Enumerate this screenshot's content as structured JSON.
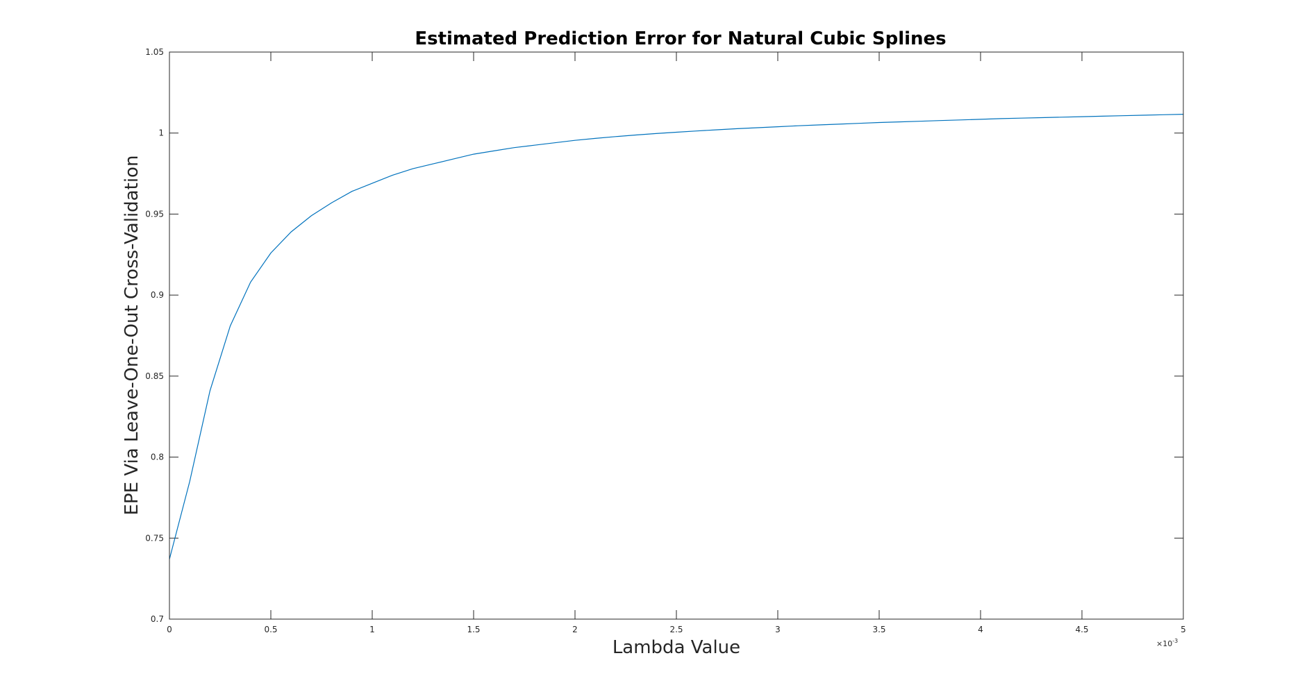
{
  "chart_data": {
    "type": "line",
    "title": "Estimated Prediction Error for Natural Cubic Splines",
    "xlabel": "Lambda Value",
    "ylabel": "EPE Via Leave-One-Out Cross-Validation",
    "xlim": [
      0,
      0.005
    ],
    "ylim": [
      0.7,
      1.05
    ],
    "x_exponent_label": "×10",
    "x_exponent_power": "-3",
    "x_ticks": [
      0,
      0.0005,
      0.001,
      0.0015,
      0.002,
      0.0025,
      0.003,
      0.0035,
      0.004,
      0.0045,
      0.005
    ],
    "x_tick_labels": [
      "0",
      "0.5",
      "1",
      "1.5",
      "2",
      "2.5",
      "3",
      "3.5",
      "4",
      "4.5",
      "5"
    ],
    "y_ticks": [
      0.7,
      0.75,
      0.8,
      0.85,
      0.9,
      0.95,
      1,
      1.05
    ],
    "y_tick_labels": [
      "0.7",
      "0.75",
      "0.8",
      "0.85",
      "0.9",
      "0.95",
      "1",
      "1.05"
    ],
    "grid": false,
    "line_color": "#0072BD",
    "series": [
      {
        "x": [
          0,
          0.0001,
          0.0002,
          0.0003,
          0.0004,
          0.0005,
          0.0006,
          0.0007,
          0.0008,
          0.0009,
          0.001,
          0.0011,
          0.0012,
          0.0013,
          0.0014,
          0.0015,
          0.0016,
          0.0017,
          0.0018,
          0.0019,
          0.002,
          0.0021,
          0.0022,
          0.0023,
          0.0024,
          0.0025,
          0.0026,
          0.0027,
          0.0028,
          0.0029,
          0.003,
          0.0031,
          0.0032,
          0.0033,
          0.0034,
          0.0035,
          0.0036,
          0.0037,
          0.0038,
          0.0039,
          0.004,
          0.0041,
          0.0042,
          0.0043,
          0.0044,
          0.0045,
          0.0046,
          0.0047,
          0.0048,
          0.0049,
          0.005
        ],
        "y": [
          0.737,
          0.785,
          0.841,
          0.881,
          0.908,
          0.926,
          0.939,
          0.949,
          0.957,
          0.964,
          0.969,
          0.974,
          0.978,
          0.981,
          0.984,
          0.987,
          0.989,
          0.991,
          0.9925,
          0.994,
          0.9955,
          0.9967,
          0.9978,
          0.9988,
          0.9997,
          1.0005,
          1.0013,
          1.002,
          1.0027,
          1.0033,
          1.0039,
          1.0045,
          1.005,
          1.0055,
          1.006,
          1.0065,
          1.0069,
          1.0073,
          1.0077,
          1.0081,
          1.0085,
          1.0089,
          1.0092,
          1.0095,
          1.0098,
          1.0101,
          1.0104,
          1.0107,
          1.011,
          1.0113,
          1.0116
        ]
      }
    ]
  }
}
